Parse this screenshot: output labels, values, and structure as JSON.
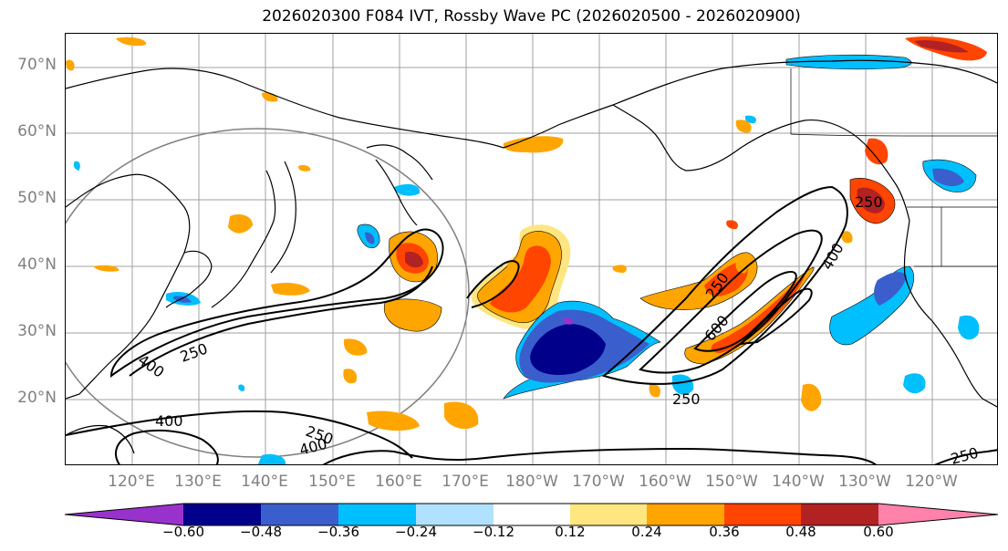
{
  "title": "2026020300 F084 IVT, Rossby Wave PC (2026020500 - 2026020900)",
  "lat_labels": [
    "70°N",
    "60°N",
    "50°N",
    "40°N",
    "30°N",
    "20°N"
  ],
  "lon_labels": [
    "120°E",
    "130°E",
    "140°E",
    "150°E",
    "160°E",
    "170°E",
    "180°W",
    "170°W",
    "160°W",
    "150°W",
    "140°W",
    "130°W",
    "120°W"
  ],
  "contour_labels": [
    "250",
    "400",
    "400",
    "250",
    "250",
    "400",
    "250",
    "600",
    "400",
    "250",
    "250"
  ],
  "colorbar": {
    "tick_labels": [
      "−0.60",
      "−0.48",
      "−0.36",
      "−0.24",
      "−0.12",
      "0.12",
      "0.24",
      "0.36",
      "0.48",
      "0.60"
    ],
    "colors": [
      "#9932cc",
      "#00008b",
      "#3a5fcd",
      "#00bfff",
      "#b0e2ff",
      "#ffffff",
      "#ffe680",
      "#ffa500",
      "#ff4500",
      "#b22222",
      "#ff82ab"
    ]
  }
}
